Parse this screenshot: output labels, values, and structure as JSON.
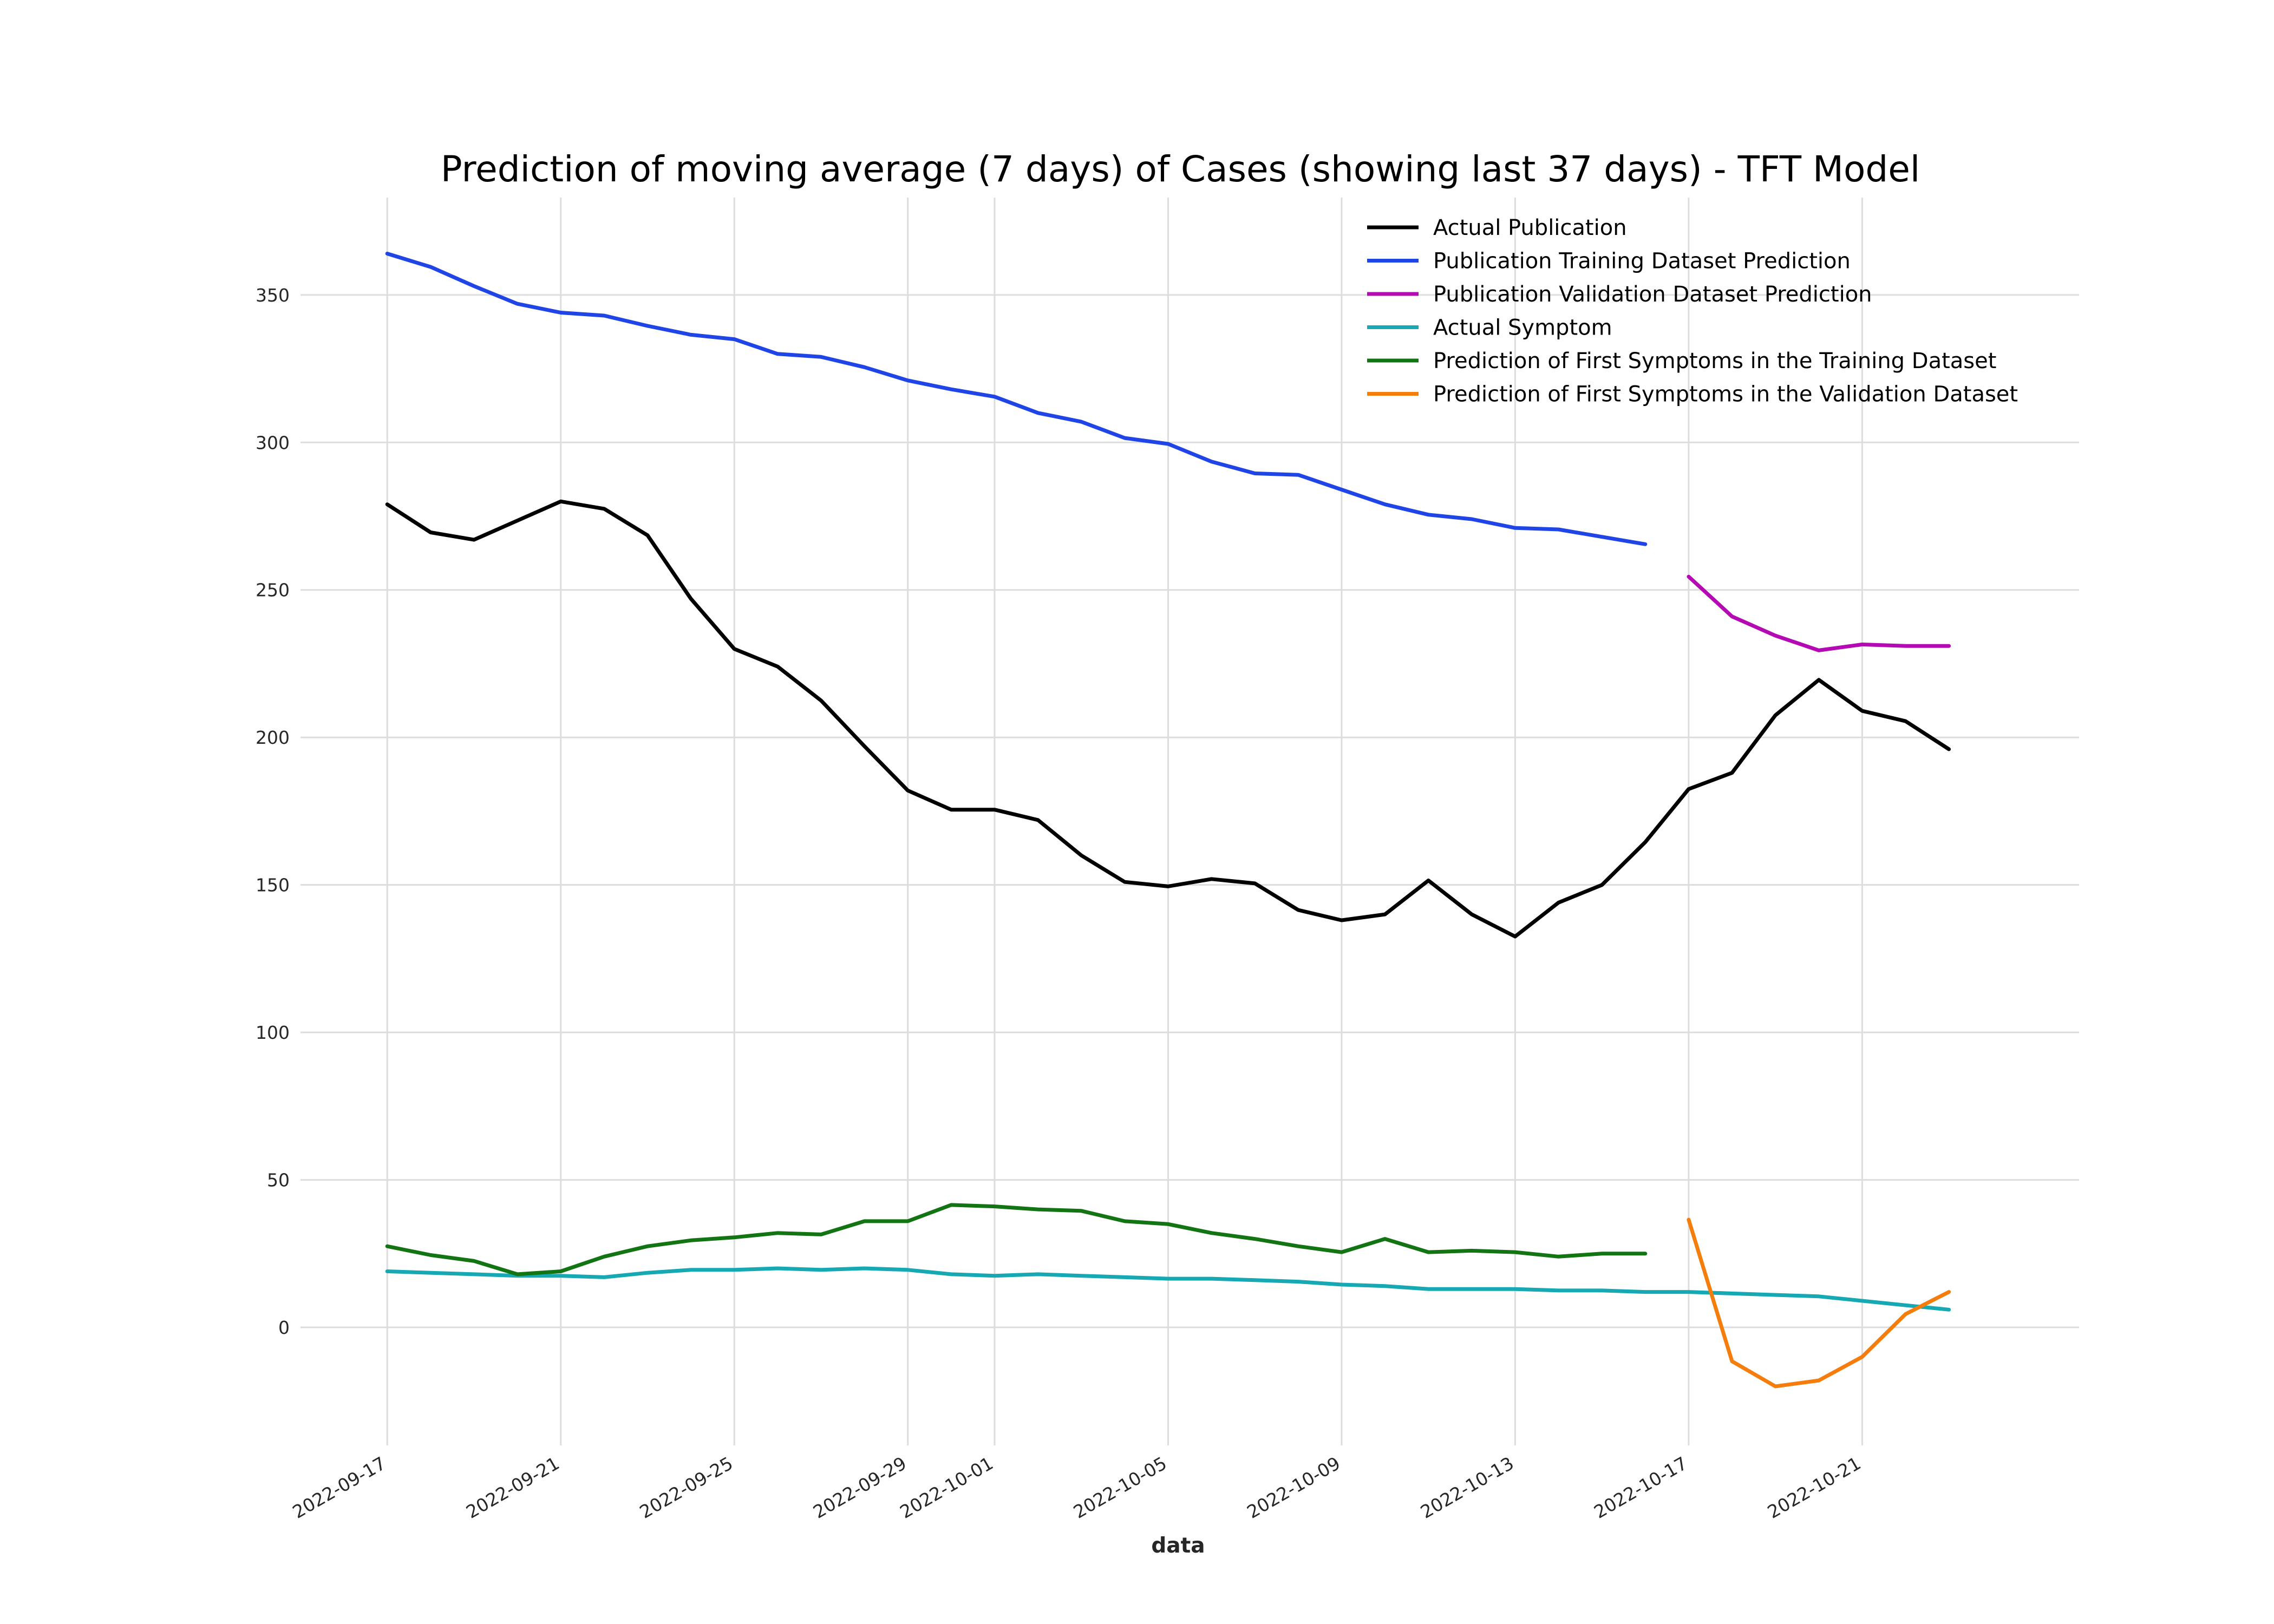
{
  "chart_data": {
    "type": "line",
    "title": "Prediction of moving average (7 days) of Cases (showing last 37 days) - TFT Model",
    "xlabel": "data",
    "ylabel": "",
    "x_type": "date",
    "xlim": [
      "2022-09-15",
      "2022-10-26"
    ],
    "ylim": [
      -40,
      383
    ],
    "x_ticks": [
      "2022-09-17",
      "2022-09-21",
      "2022-09-25",
      "2022-09-29",
      "2022-10-01",
      "2022-10-05",
      "2022-10-09",
      "2022-10-13",
      "2022-10-17",
      "2022-10-21"
    ],
    "y_ticks": [
      0,
      50,
      100,
      150,
      200,
      250,
      300,
      350
    ],
    "grid": true,
    "legend_position": "top-right",
    "series": [
      {
        "name": "Actual Publication",
        "color": "#000000",
        "start": "2022-09-17",
        "values": [
          279,
          269.5,
          267,
          273.5,
          280,
          277.5,
          268.5,
          247,
          230,
          224,
          212.5,
          197,
          182,
          175.5,
          175.5,
          172,
          160,
          151,
          149.5,
          152,
          150.5,
          141.5,
          138,
          140,
          151.5,
          140,
          132.5,
          144,
          150,
          164.5,
          182.5,
          188,
          207.5,
          219.5,
          209,
          205.5,
          196
        ]
      },
      {
        "name": "Publication Training Dataset Prediction",
        "color": "#1f45e6",
        "start": "2022-09-17",
        "values": [
          364,
          359.5,
          353,
          347,
          344,
          343,
          339.5,
          336.5,
          335,
          330,
          329,
          325.5,
          321,
          318,
          315.5,
          310,
          307,
          301.5,
          299.5,
          293.5,
          289.5,
          289,
          284,
          279,
          275.5,
          274,
          271,
          270.5,
          268,
          265.5
        ]
      },
      {
        "name": "Publication Validation Dataset Prediction",
        "color": "#b40ab4",
        "start": "2022-10-17",
        "values": [
          254.5,
          241,
          234.5,
          229.5,
          231.5,
          231,
          231
        ]
      },
      {
        "name": "Actual Symptom",
        "color": "#16a9b4",
        "start": "2022-09-17",
        "values": [
          19,
          18.5,
          18,
          17.5,
          17.5,
          17,
          18.5,
          19.5,
          19.5,
          20,
          19.5,
          20,
          19.5,
          18,
          17.5,
          18,
          17.5,
          17,
          16.5,
          16.5,
          16,
          15.5,
          14.5,
          14,
          13,
          13,
          13,
          12.5,
          12.5,
          12,
          12,
          11.5,
          11,
          10.5,
          9,
          7.5,
          6
        ]
      },
      {
        "name": "Prediction of First Symptoms in the Training Dataset",
        "color": "#127412",
        "start": "2022-09-17",
        "values": [
          27.5,
          24.5,
          22.5,
          18,
          19,
          24,
          27.5,
          29.5,
          30.5,
          32,
          31.5,
          36,
          36,
          41.5,
          41,
          40,
          39.5,
          36,
          35,
          32,
          30,
          27.5,
          25.5,
          30,
          25.5,
          26,
          25.5,
          24,
          25,
          25
        ]
      },
      {
        "name": "Prediction of First Symptoms in the Validation Dataset",
        "color": "#f47d0c",
        "start": "2022-10-17",
        "values": [
          36.5,
          -11.5,
          -20,
          -18,
          -10,
          4.5,
          12
        ]
      }
    ]
  }
}
